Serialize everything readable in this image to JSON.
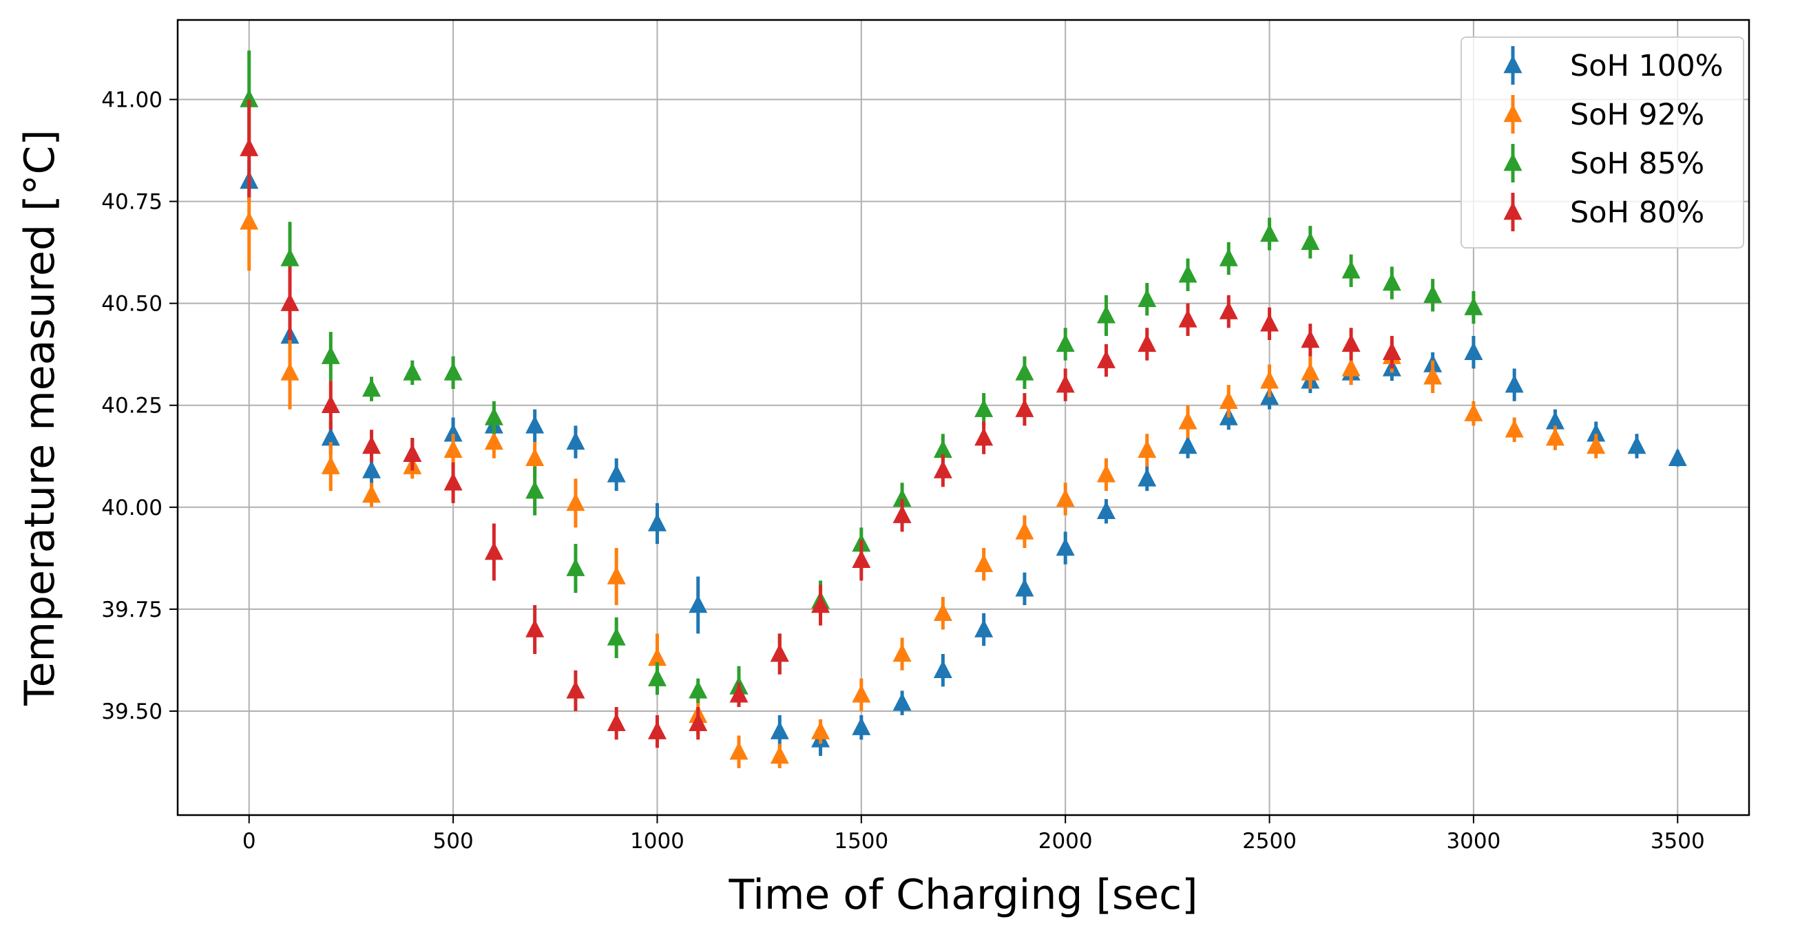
{
  "chart_data": {
    "type": "scatter",
    "title": "",
    "xlabel": "Time of Charging [sec]",
    "ylabel": "Temperature measured [°C]",
    "xlim": [
      -175,
      3675
    ],
    "ylim": [
      39.245,
      41.195
    ],
    "xticks": [
      0,
      500,
      1000,
      1500,
      2000,
      2500,
      3000,
      3500
    ],
    "xtick_labels": [
      "0",
      "500",
      "1000",
      "1500",
      "2000",
      "2500",
      "3000",
      "3500"
    ],
    "yticks": [
      39.5,
      39.75,
      40.0,
      40.25,
      40.5,
      40.75,
      41.0
    ],
    "ytick_labels": [
      "39.50",
      "39.75",
      "40.00",
      "40.25",
      "40.50",
      "40.75",
      "41.00"
    ],
    "grid": true,
    "legend_position": "top-right",
    "marker": "triangle-up with vertical error bars",
    "series": [
      {
        "name": "SoH 100%",
        "color": "#1f77b4",
        "x": [
          0,
          100,
          200,
          300,
          400,
          500,
          600,
          700,
          800,
          900,
          1000,
          1100,
          1200,
          1300,
          1400,
          1500,
          1600,
          1700,
          1800,
          1900,
          2000,
          2100,
          2200,
          2300,
          2400,
          2500,
          2600,
          2700,
          2800,
          2900,
          3000,
          3100,
          3200,
          3300,
          3400,
          3500
        ],
        "y": [
          40.8,
          40.42,
          40.17,
          40.09,
          40.13,
          40.18,
          40.2,
          40.2,
          40.16,
          40.08,
          39.96,
          39.76,
          39.56,
          39.45,
          39.43,
          39.46,
          39.52,
          39.6,
          39.7,
          39.8,
          39.9,
          39.99,
          40.07,
          40.15,
          40.22,
          40.27,
          40.31,
          40.33,
          40.34,
          40.35,
          40.38,
          40.3,
          40.21,
          40.18,
          40.15,
          40.12
        ],
        "err": [
          0.05,
          0.04,
          0.04,
          0.04,
          0.04,
          0.04,
          0.04,
          0.04,
          0.04,
          0.04,
          0.05,
          0.07,
          0.05,
          0.04,
          0.04,
          0.03,
          0.03,
          0.04,
          0.04,
          0.04,
          0.04,
          0.03,
          0.03,
          0.03,
          0.03,
          0.03,
          0.03,
          0.03,
          0.03,
          0.03,
          0.04,
          0.04,
          0.03,
          0.03,
          0.03,
          0.02
        ]
      },
      {
        "name": "SoH 92%",
        "color": "#ff7f0e",
        "x": [
          0,
          100,
          200,
          300,
          400,
          500,
          600,
          700,
          800,
          900,
          1000,
          1100,
          1200,
          1300,
          1400,
          1500,
          1600,
          1700,
          1800,
          1900,
          2000,
          2100,
          2200,
          2300,
          2400,
          2500,
          2600,
          2700,
          2800,
          2900,
          3000,
          3100,
          3200,
          3300
        ],
        "y": [
          40.7,
          40.33,
          40.1,
          40.03,
          40.1,
          40.14,
          40.16,
          40.12,
          40.01,
          39.83,
          39.63,
          39.49,
          39.4,
          39.39,
          39.45,
          39.54,
          39.64,
          39.74,
          39.86,
          39.94,
          40.02,
          40.08,
          40.14,
          40.21,
          40.26,
          40.31,
          40.33,
          40.34,
          40.37,
          40.32,
          40.23,
          40.19,
          40.17,
          40.15
        ],
        "err": [
          0.12,
          0.09,
          0.06,
          0.03,
          0.03,
          0.04,
          0.04,
          0.04,
          0.06,
          0.07,
          0.06,
          0.05,
          0.04,
          0.03,
          0.03,
          0.04,
          0.04,
          0.04,
          0.04,
          0.04,
          0.04,
          0.04,
          0.04,
          0.04,
          0.04,
          0.04,
          0.04,
          0.04,
          0.04,
          0.04,
          0.03,
          0.03,
          0.03,
          0.03
        ]
      },
      {
        "name": "SoH 85%",
        "color": "#2ca02c",
        "x": [
          0,
          100,
          200,
          300,
          400,
          500,
          600,
          700,
          800,
          900,
          1000,
          1100,
          1200,
          1300,
          1400,
          1500,
          1600,
          1700,
          1800,
          1900,
          2000,
          2100,
          2200,
          2300,
          2400,
          2500,
          2600,
          2700,
          2800,
          2900,
          3000
        ],
        "y": [
          41.0,
          40.61,
          40.37,
          40.29,
          40.33,
          40.33,
          40.22,
          40.04,
          39.85,
          39.68,
          39.58,
          39.55,
          39.56,
          39.64,
          39.77,
          39.91,
          40.02,
          40.14,
          40.24,
          40.33,
          40.4,
          40.47,
          40.51,
          40.57,
          40.61,
          40.67,
          40.65,
          40.58,
          40.55,
          40.52,
          40.49
        ],
        "err": [
          0.12,
          0.09,
          0.06,
          0.03,
          0.03,
          0.04,
          0.04,
          0.06,
          0.06,
          0.05,
          0.04,
          0.03,
          0.05,
          0.05,
          0.05,
          0.04,
          0.04,
          0.04,
          0.04,
          0.04,
          0.04,
          0.05,
          0.04,
          0.04,
          0.04,
          0.04,
          0.04,
          0.04,
          0.04,
          0.04,
          0.04
        ]
      },
      {
        "name": "SoH 80%",
        "color": "#d62728",
        "x": [
          0,
          100,
          200,
          300,
          400,
          500,
          600,
          700,
          800,
          900,
          1000,
          1100,
          1200,
          1300,
          1400,
          1500,
          1600,
          1700,
          1800,
          1900,
          2000,
          2100,
          2200,
          2300,
          2400,
          2500,
          2600,
          2700,
          2800
        ],
        "y": [
          40.88,
          40.5,
          40.25,
          40.15,
          40.13,
          40.06,
          39.89,
          39.7,
          39.55,
          39.47,
          39.45,
          39.47,
          39.54,
          39.64,
          39.76,
          39.87,
          39.98,
          40.09,
          40.17,
          40.24,
          40.3,
          40.36,
          40.4,
          40.46,
          40.48,
          40.45,
          40.41,
          40.4,
          40.38
        ],
        "err": [
          0.12,
          0.09,
          0.06,
          0.04,
          0.04,
          0.05,
          0.07,
          0.06,
          0.05,
          0.04,
          0.04,
          0.04,
          0.03,
          0.05,
          0.05,
          0.05,
          0.04,
          0.04,
          0.04,
          0.04,
          0.04,
          0.04,
          0.04,
          0.04,
          0.04,
          0.04,
          0.04,
          0.04,
          0.04
        ]
      }
    ]
  }
}
